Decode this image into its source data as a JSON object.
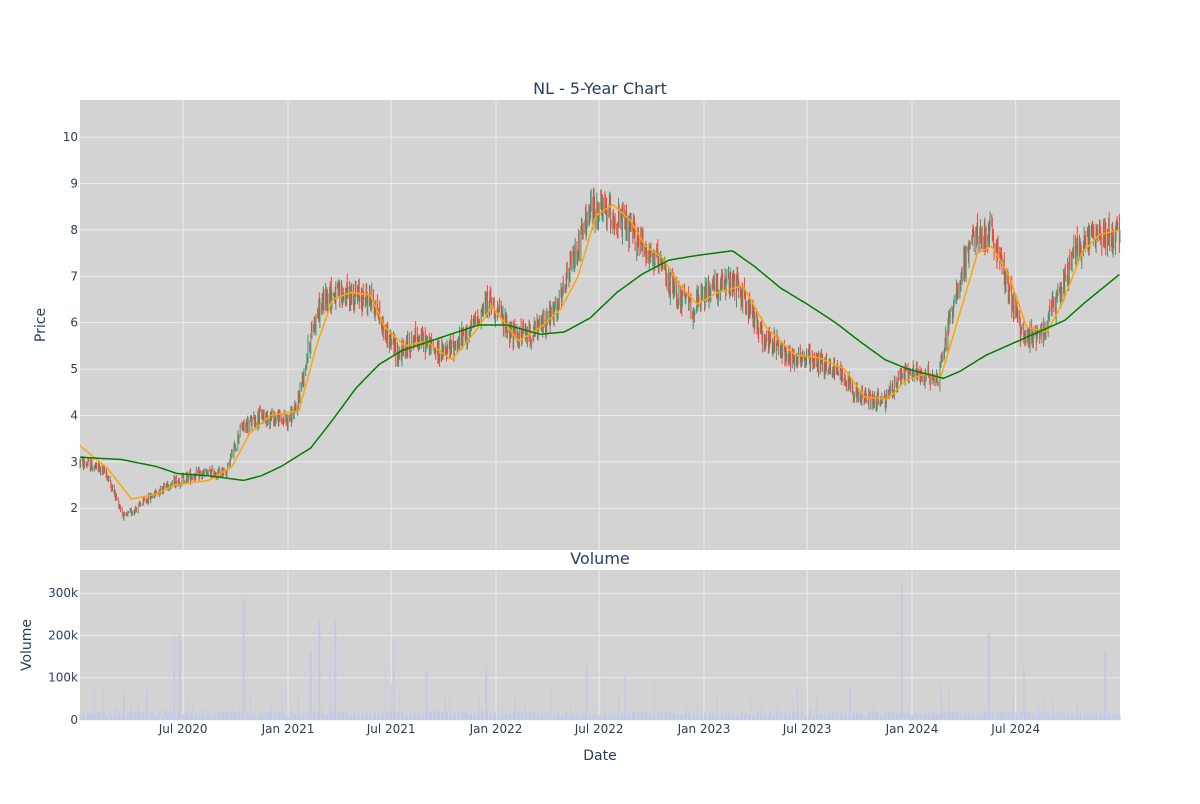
{
  "colors": {
    "plot_bg": "#d3d3d3",
    "grid": "#ebebeb",
    "up": "#3d9970",
    "down": "#ff4136",
    "ma_short": "#ffa500",
    "ma_long": "#008000",
    "volume": "#c5c9e6",
    "text": "#2a3f5f"
  },
  "chart_data": [
    {
      "type": "candlestick",
      "title": "NL - 5-Year Chart",
      "xlabel": "",
      "ylabel": "Price",
      "grid": true,
      "xlim": [
        "2020-01-02",
        "2024-12-31"
      ],
      "ylim": [
        1.1,
        10.8
      ],
      "x_ticks": [
        "2020-07-01",
        "2021-01-01",
        "2021-07-01",
        "2022-01-01",
        "2022-07-01",
        "2023-01-01",
        "2023-07-01",
        "2024-01-01",
        "2024-07-01"
      ],
      "x_tick_labels": [
        "Jul 2020",
        "Jan 2021",
        "Jul 2021",
        "Jan 2022",
        "Jul 2022",
        "Jan 2023",
        "Jul 2023",
        "Jan 2024",
        "Jul 2024"
      ],
      "y_ticks": [
        2,
        3,
        4,
        5,
        6,
        7,
        8,
        9,
        10
      ],
      "y_tick_labels": [
        "2",
        "3",
        "4",
        "5",
        "6",
        "7",
        "8",
        "9",
        "10"
      ],
      "price_anchors": [
        [
          "2020-01-02",
          3.0
        ],
        [
          "2020-02-15",
          2.8
        ],
        [
          "2020-03-20",
          1.8
        ],
        [
          "2020-04-20",
          2.1
        ],
        [
          "2020-06-01",
          2.5
        ],
        [
          "2020-07-15",
          2.7
        ],
        [
          "2020-09-15",
          2.8
        ],
        [
          "2020-10-10",
          3.7
        ],
        [
          "2020-11-15",
          4.0
        ],
        [
          "2020-12-31",
          3.9
        ],
        [
          "2021-01-15",
          4.1
        ],
        [
          "2021-02-15",
          6.0
        ],
        [
          "2021-03-10",
          6.6
        ],
        [
          "2021-04-15",
          6.6
        ],
        [
          "2021-05-30",
          6.5
        ],
        [
          "2021-06-20",
          5.8
        ],
        [
          "2021-07-15",
          5.3
        ],
        [
          "2021-08-15",
          5.7
        ],
        [
          "2021-10-01",
          5.3
        ],
        [
          "2021-11-15",
          5.8
        ],
        [
          "2021-12-20",
          6.5
        ],
        [
          "2022-02-01",
          5.7
        ],
        [
          "2022-03-10",
          5.8
        ],
        [
          "2022-04-20",
          6.3
        ],
        [
          "2022-05-15",
          7.3
        ],
        [
          "2022-06-15",
          8.4
        ],
        [
          "2022-07-15",
          8.4
        ],
        [
          "2022-08-20",
          8.0
        ],
        [
          "2022-09-15",
          7.7
        ],
        [
          "2022-10-10",
          7.3
        ],
        [
          "2022-11-15",
          6.6
        ],
        [
          "2022-12-15",
          6.3
        ],
        [
          "2023-01-15",
          6.8
        ],
        [
          "2023-03-01",
          6.8
        ],
        [
          "2023-04-15",
          5.7
        ],
        [
          "2023-06-01",
          5.3
        ],
        [
          "2023-07-15",
          5.2
        ],
        [
          "2023-09-01",
          4.9
        ],
        [
          "2023-10-01",
          4.4
        ],
        [
          "2023-11-15",
          4.3
        ],
        [
          "2023-12-15",
          4.9
        ],
        [
          "2024-01-15",
          4.9
        ],
        [
          "2024-02-15",
          4.8
        ],
        [
          "2024-03-15",
          6.5
        ],
        [
          "2024-04-15",
          7.8
        ],
        [
          "2024-05-20",
          7.9
        ],
        [
          "2024-06-15",
          6.9
        ],
        [
          "2024-07-15",
          5.6
        ],
        [
          "2024-08-20",
          5.9
        ],
        [
          "2024-09-15",
          6.6
        ],
        [
          "2024-10-15",
          7.6
        ],
        [
          "2024-11-15",
          7.9
        ],
        [
          "2024-12-31",
          7.9
        ]
      ],
      "series": [
        {
          "name": "",
          "kind": "moving-average-short",
          "color": "#ffa500",
          "points": [
            [
              "2020-01-02",
              3.35
            ],
            [
              "2020-02-20",
              2.85
            ],
            [
              "2020-04-01",
              2.2
            ],
            [
              "2020-05-15",
              2.3
            ],
            [
              "2020-06-15",
              2.5
            ],
            [
              "2020-08-15",
              2.6
            ],
            [
              "2020-09-25",
              2.9
            ],
            [
              "2020-10-25",
              3.6
            ],
            [
              "2020-12-01",
              4.0
            ],
            [
              "2021-01-20",
              4.1
            ],
            [
              "2021-02-20",
              5.5
            ],
            [
              "2021-03-20",
              6.5
            ],
            [
              "2021-04-20",
              6.65
            ],
            [
              "2021-05-25",
              6.6
            ],
            [
              "2021-06-20",
              5.9
            ],
            [
              "2021-07-25",
              5.5
            ],
            [
              "2021-09-01",
              5.6
            ],
            [
              "2021-10-15",
              5.2
            ],
            [
              "2021-11-25",
              5.8
            ],
            [
              "2021-12-25",
              6.35
            ],
            [
              "2022-02-10",
              5.6
            ],
            [
              "2022-03-20",
              5.9
            ],
            [
              "2022-04-25",
              6.3
            ],
            [
              "2022-05-25",
              7.0
            ],
            [
              "2022-06-25",
              8.3
            ],
            [
              "2022-07-25",
              8.55
            ],
            [
              "2022-08-25",
              8.2
            ],
            [
              "2022-09-20",
              7.65
            ],
            [
              "2022-10-20",
              7.4
            ],
            [
              "2022-11-20",
              6.8
            ],
            [
              "2022-12-20",
              6.4
            ],
            [
              "2023-01-25",
              6.65
            ],
            [
              "2023-03-10",
              6.8
            ],
            [
              "2023-04-20",
              5.9
            ],
            [
              "2023-06-10",
              5.3
            ],
            [
              "2023-07-20",
              5.25
            ],
            [
              "2023-09-05",
              5.0
            ],
            [
              "2023-10-10",
              4.4
            ],
            [
              "2023-11-20",
              4.35
            ],
            [
              "2023-12-20",
              4.75
            ],
            [
              "2024-01-25",
              4.9
            ],
            [
              "2024-02-20",
              4.8
            ],
            [
              "2024-03-20",
              6.0
            ],
            [
              "2024-04-25",
              7.5
            ],
            [
              "2024-05-20",
              7.65
            ],
            [
              "2024-06-20",
              7.0
            ],
            [
              "2024-07-20",
              5.9
            ],
            [
              "2024-08-25",
              5.8
            ],
            [
              "2024-09-20",
              6.4
            ],
            [
              "2024-10-25",
              7.5
            ],
            [
              "2024-11-25",
              7.9
            ],
            [
              "2024-12-31",
              8.0
            ]
          ]
        },
        {
          "name": "",
          "kind": "moving-average-long",
          "color": "#008000",
          "points": [
            [
              "2020-01-02",
              3.1
            ],
            [
              "2020-03-15",
              3.05
            ],
            [
              "2020-05-15",
              2.9
            ],
            [
              "2020-06-20",
              2.75
            ],
            [
              "2020-08-15",
              2.7
            ],
            [
              "2020-10-15",
              2.6
            ],
            [
              "2020-11-15",
              2.7
            ],
            [
              "2020-12-20",
              2.9
            ],
            [
              "2021-02-10",
              3.3
            ],
            [
              "2021-03-20",
              3.9
            ],
            [
              "2021-05-01",
              4.6
            ],
            [
              "2021-06-10",
              5.1
            ],
            [
              "2021-07-20",
              5.4
            ],
            [
              "2021-10-01",
              5.7
            ],
            [
              "2021-12-01",
              5.95
            ],
            [
              "2022-01-20",
              5.95
            ],
            [
              "2022-03-20",
              5.75
            ],
            [
              "2022-05-01",
              5.8
            ],
            [
              "2022-06-15",
              6.1
            ],
            [
              "2022-08-01",
              6.65
            ],
            [
              "2022-09-15",
              7.05
            ],
            [
              "2022-11-01",
              7.35
            ],
            [
              "2022-12-20",
              7.45
            ],
            [
              "2023-01-20",
              7.5
            ],
            [
              "2023-02-20",
              7.55
            ],
            [
              "2023-04-01",
              7.2
            ],
            [
              "2023-05-15",
              6.75
            ],
            [
              "2023-07-01",
              6.4
            ],
            [
              "2023-08-20",
              6.0
            ],
            [
              "2023-10-01",
              5.6
            ],
            [
              "2023-11-15",
              5.2
            ],
            [
              "2023-12-25",
              5.0
            ],
            [
              "2024-01-25",
              4.9
            ],
            [
              "2024-02-25",
              4.8
            ],
            [
              "2024-03-25",
              4.95
            ],
            [
              "2024-05-10",
              5.3
            ],
            [
              "2024-06-25",
              5.55
            ],
            [
              "2024-08-10",
              5.8
            ],
            [
              "2024-09-25",
              6.05
            ],
            [
              "2024-11-01",
              6.45
            ],
            [
              "2024-12-31",
              7.05
            ]
          ]
        }
      ]
    },
    {
      "type": "bar",
      "title": "Volume",
      "xlabel": "Date",
      "ylabel": "Volume",
      "grid": true,
      "xlim": [
        "2020-01-02",
        "2024-12-31"
      ],
      "ylim": [
        0,
        355000
      ],
      "x_ticks": [
        "2020-07-01",
        "2021-01-01",
        "2021-07-01",
        "2022-01-01",
        "2022-07-01",
        "2023-01-01",
        "2023-07-01",
        "2024-01-01",
        "2024-07-01"
      ],
      "x_tick_labels": [
        "Jul 2020",
        "Jan 2021",
        "Jul 2021",
        "Jan 2022",
        "Jul 2022",
        "Jan 2023",
        "Jul 2023",
        "Jan 2024",
        "Jul 2024"
      ],
      "y_ticks": [
        0,
        100000,
        200000,
        300000
      ],
      "y_tick_labels": [
        "0",
        "100k",
        "200k",
        "300k"
      ],
      "spikes": [
        [
          "2020-03-20",
          65000
        ],
        [
          "2020-06-15",
          200000
        ],
        [
          "2020-06-25",
          205000
        ],
        [
          "2020-10-15",
          285000
        ],
        [
          "2021-02-10",
          165000
        ],
        [
          "2021-02-25",
          240000
        ],
        [
          "2021-03-15",
          160000
        ],
        [
          "2021-03-25",
          240000
        ],
        [
          "2021-06-20",
          120000
        ],
        [
          "2021-07-05",
          190000
        ],
        [
          "2021-09-01",
          115000
        ],
        [
          "2021-12-15",
          130000
        ],
        [
          "2022-06-10",
          130000
        ],
        [
          "2022-07-10",
          100000
        ],
        [
          "2022-08-15",
          105000
        ],
        [
          "2023-09-15",
          85000
        ],
        [
          "2023-12-15",
          330000
        ],
        [
          "2024-05-15",
          205000
        ],
        [
          "2024-07-15",
          120000
        ],
        [
          "2024-12-05",
          165000
        ]
      ],
      "base_volume": 15000
    }
  ]
}
